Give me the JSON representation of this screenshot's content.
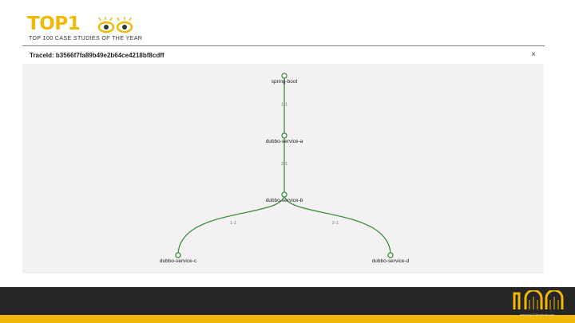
{
  "header": {
    "logo_text": "TOP1",
    "logo_subtitle": "TOP 100 CASE STUDIES OF THE YEAR"
  },
  "dialog": {
    "title": "TraceId: b3566f7fa89b49e2b64ce4218bf8cdff",
    "close_label": "×"
  },
  "graph": {
    "nodes": [
      {
        "id": "spring-boot",
        "label": "spring-boot"
      },
      {
        "id": "dubbo-service-a",
        "label": "dubbo-service-a"
      },
      {
        "id": "dubbo-service-b",
        "label": "dubbo-service-b"
      },
      {
        "id": "dubbo-service-c",
        "label": "dubbo-service-c"
      },
      {
        "id": "dubbo-service-d",
        "label": "dubbo-service-d"
      }
    ],
    "edges": [
      {
        "from": "spring-boot",
        "to": "dubbo-service-a",
        "label": "1-1"
      },
      {
        "from": "dubbo-service-a",
        "to": "dubbo-service-b",
        "label": "2-1"
      },
      {
        "from": "dubbo-service-b",
        "to": "dubbo-service-c",
        "label": "1-1"
      },
      {
        "from": "dubbo-service-b",
        "to": "dubbo-service-d",
        "label": "2-1"
      }
    ],
    "edge_color": "#3a8f3a",
    "node_fill": "#ffffff"
  },
  "footer": {
    "url": "www.top100summit.com",
    "logo_alt": "100"
  },
  "colors": {
    "brand_yellow": "#f2b807",
    "footer_dark": "#262626"
  }
}
